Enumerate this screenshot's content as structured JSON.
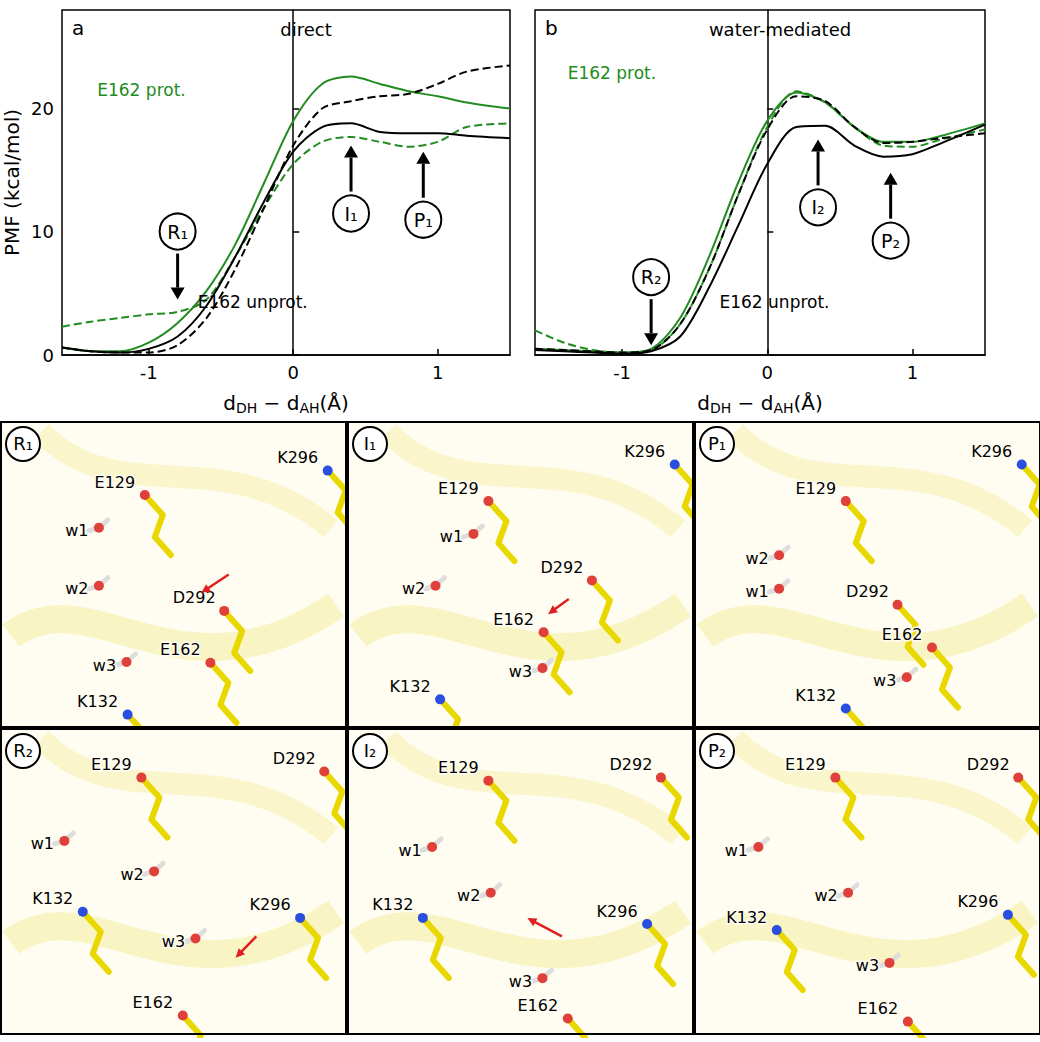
{
  "chart_data": [
    {
      "type": "line",
      "panel": "a",
      "title": "direct",
      "xlabel": "dDH − dAH(Å)",
      "ylabel": "PMF (kcal/mol)",
      "xlim": [
        -1.6,
        1.5
      ],
      "ylim": [
        0,
        28
      ],
      "xticks": [
        -1,
        0,
        1
      ],
      "yticks": [
        0,
        10,
        20
      ],
      "x": [
        -1.6,
        -1.4,
        -1.2,
        -1.0,
        -0.8,
        -0.6,
        -0.4,
        -0.2,
        0,
        0.2,
        0.4,
        0.6,
        0.8,
        1.0,
        1.2,
        1.5
      ],
      "series": [
        {
          "name": "E162 prot.",
          "color": "#228b22",
          "line_style": "solid",
          "values": [
            0.6,
            0.3,
            0.3,
            1.0,
            2.6,
            5.2,
            9,
            14,
            19,
            22,
            22.6,
            22,
            21.4,
            21,
            20.5,
            20
          ]
        },
        {
          "name": "E162 prot.",
          "color": "#228b22",
          "line_style": "dashed",
          "values": [
            2.3,
            2.7,
            3.0,
            3.3,
            3.5,
            4.5,
            8,
            12,
            15.5,
            17.3,
            17.7,
            17.3,
            16.9,
            17.3,
            18.5,
            18.8
          ]
        },
        {
          "name": "E162 unprot.",
          "color": "#000000",
          "line_style": "solid",
          "values": [
            0.6,
            0.3,
            0.2,
            0.5,
            1.5,
            4,
            8,
            12.5,
            16.5,
            18.5,
            18.8,
            18.1,
            18,
            18,
            17.8,
            17.6
          ]
        },
        {
          "name": "E162 unprot.",
          "color": "#000000",
          "line_style": "dashed",
          "values": [
            0.6,
            0.3,
            0.2,
            0.2,
            0.8,
            3,
            7,
            12,
            17,
            20,
            20.6,
            21,
            21.2,
            22,
            23,
            23.5
          ]
        }
      ],
      "annotations": [
        {
          "text": "E162 prot.",
          "x": -1.05,
          "y": 21.5,
          "color": "#228b22"
        },
        {
          "text": "E162 unprot.",
          "x": -0.28,
          "y": 4.3,
          "color": "#000000"
        }
      ],
      "markers": [
        {
          "text": "R₁",
          "x": -0.8,
          "y": 4.5,
          "arrow": "down"
        },
        {
          "text": "I₁",
          "x": 0.4,
          "y": 17,
          "arrow": "up"
        },
        {
          "text": "P₁",
          "x": 0.9,
          "y": 16.5,
          "arrow": "up"
        }
      ]
    },
    {
      "type": "line",
      "panel": "b",
      "title": "water-mediated",
      "xlabel": "dDH − dAH(Å)",
      "xlim": [
        -1.6,
        1.5
      ],
      "ylim": [
        0,
        28
      ],
      "xticks": [
        -1,
        0,
        1
      ],
      "yticks": [
        0,
        10,
        20
      ],
      "tick_labels": "x",
      "x": [
        -1.6,
        -1.4,
        -1.2,
        -1.0,
        -0.8,
        -0.6,
        -0.4,
        -0.2,
        0,
        0.2,
        0.4,
        0.6,
        0.8,
        1.0,
        1.2,
        1.5
      ],
      "series": [
        {
          "name": "E162 prot.",
          "color": "#228b22",
          "line_style": "solid",
          "values": [
            0.5,
            0.4,
            0.3,
            0.2,
            0.5,
            3,
            8,
            14,
            19,
            21.3,
            20.5,
            18.5,
            17.3,
            17.3,
            17.8,
            18.8
          ]
        },
        {
          "name": "E162 prot.",
          "color": "#228b22",
          "line_style": "dashed",
          "values": [
            2.0,
            1.0,
            0.4,
            0.2,
            0.4,
            2.5,
            7,
            13,
            18.5,
            21.4,
            20.5,
            18.5,
            17,
            16.9,
            17.5,
            18.3
          ]
        },
        {
          "name": "E162 unprot.",
          "color": "#000000",
          "line_style": "dashed",
          "values": [
            0.5,
            0.4,
            0.3,
            0.2,
            0.4,
            2.5,
            7,
            13,
            18.3,
            21,
            20.6,
            18.5,
            17.2,
            17.3,
            17.6,
            18
          ]
        },
        {
          "name": "E162 unprot.",
          "color": "#000000",
          "line_style": "solid",
          "values": [
            0.4,
            0.3,
            0.2,
            0.1,
            0.3,
            1.5,
            5.5,
            10.5,
            15.5,
            18.5,
            18.6,
            17,
            16.1,
            16.3,
            17.2,
            18.7
          ]
        }
      ],
      "annotations": [
        {
          "text": "E162 prot.",
          "x": -1.07,
          "y": 22.9,
          "color": "#228b22"
        },
        {
          "text": "E162 unprot.",
          "x": 0.05,
          "y": 4.3,
          "color": "#000000"
        }
      ],
      "markers": [
        {
          "text": "R₂",
          "x": -0.8,
          "y": 0.8,
          "arrow": "down"
        },
        {
          "text": "I₂",
          "x": 0.35,
          "y": 17.5,
          "arrow": "up"
        },
        {
          "text": "P₂",
          "x": 0.85,
          "y": 14.8,
          "arrow": "up"
        }
      ]
    }
  ],
  "structures": [
    {
      "label": "R₁",
      "labels": [
        "E129",
        "K296",
        "w1",
        "w2",
        "D292",
        "E162",
        "w3",
        "K132"
      ]
    },
    {
      "label": "I₁",
      "labels": [
        "E129",
        "K296",
        "w1",
        "w2",
        "D292",
        "E162",
        "w3",
        "K132"
      ]
    },
    {
      "label": "P₁",
      "labels": [
        "E129",
        "K296",
        "w2",
        "w1",
        "D292",
        "E162",
        "K132",
        "w3"
      ]
    },
    {
      "label": "R₂",
      "labels": [
        "E129",
        "D292",
        "w1",
        "w2",
        "K296",
        "K132",
        "w3",
        "E162"
      ]
    },
    {
      "label": "I₂",
      "labels": [
        "E129",
        "w1",
        "D292",
        "w2",
        "K296",
        "K132",
        "w3",
        "E162"
      ]
    },
    {
      "label": "P₂",
      "labels": [
        "E129",
        "D292",
        "w1",
        "w2",
        "K296",
        "K132",
        "w3",
        "E162"
      ]
    }
  ]
}
